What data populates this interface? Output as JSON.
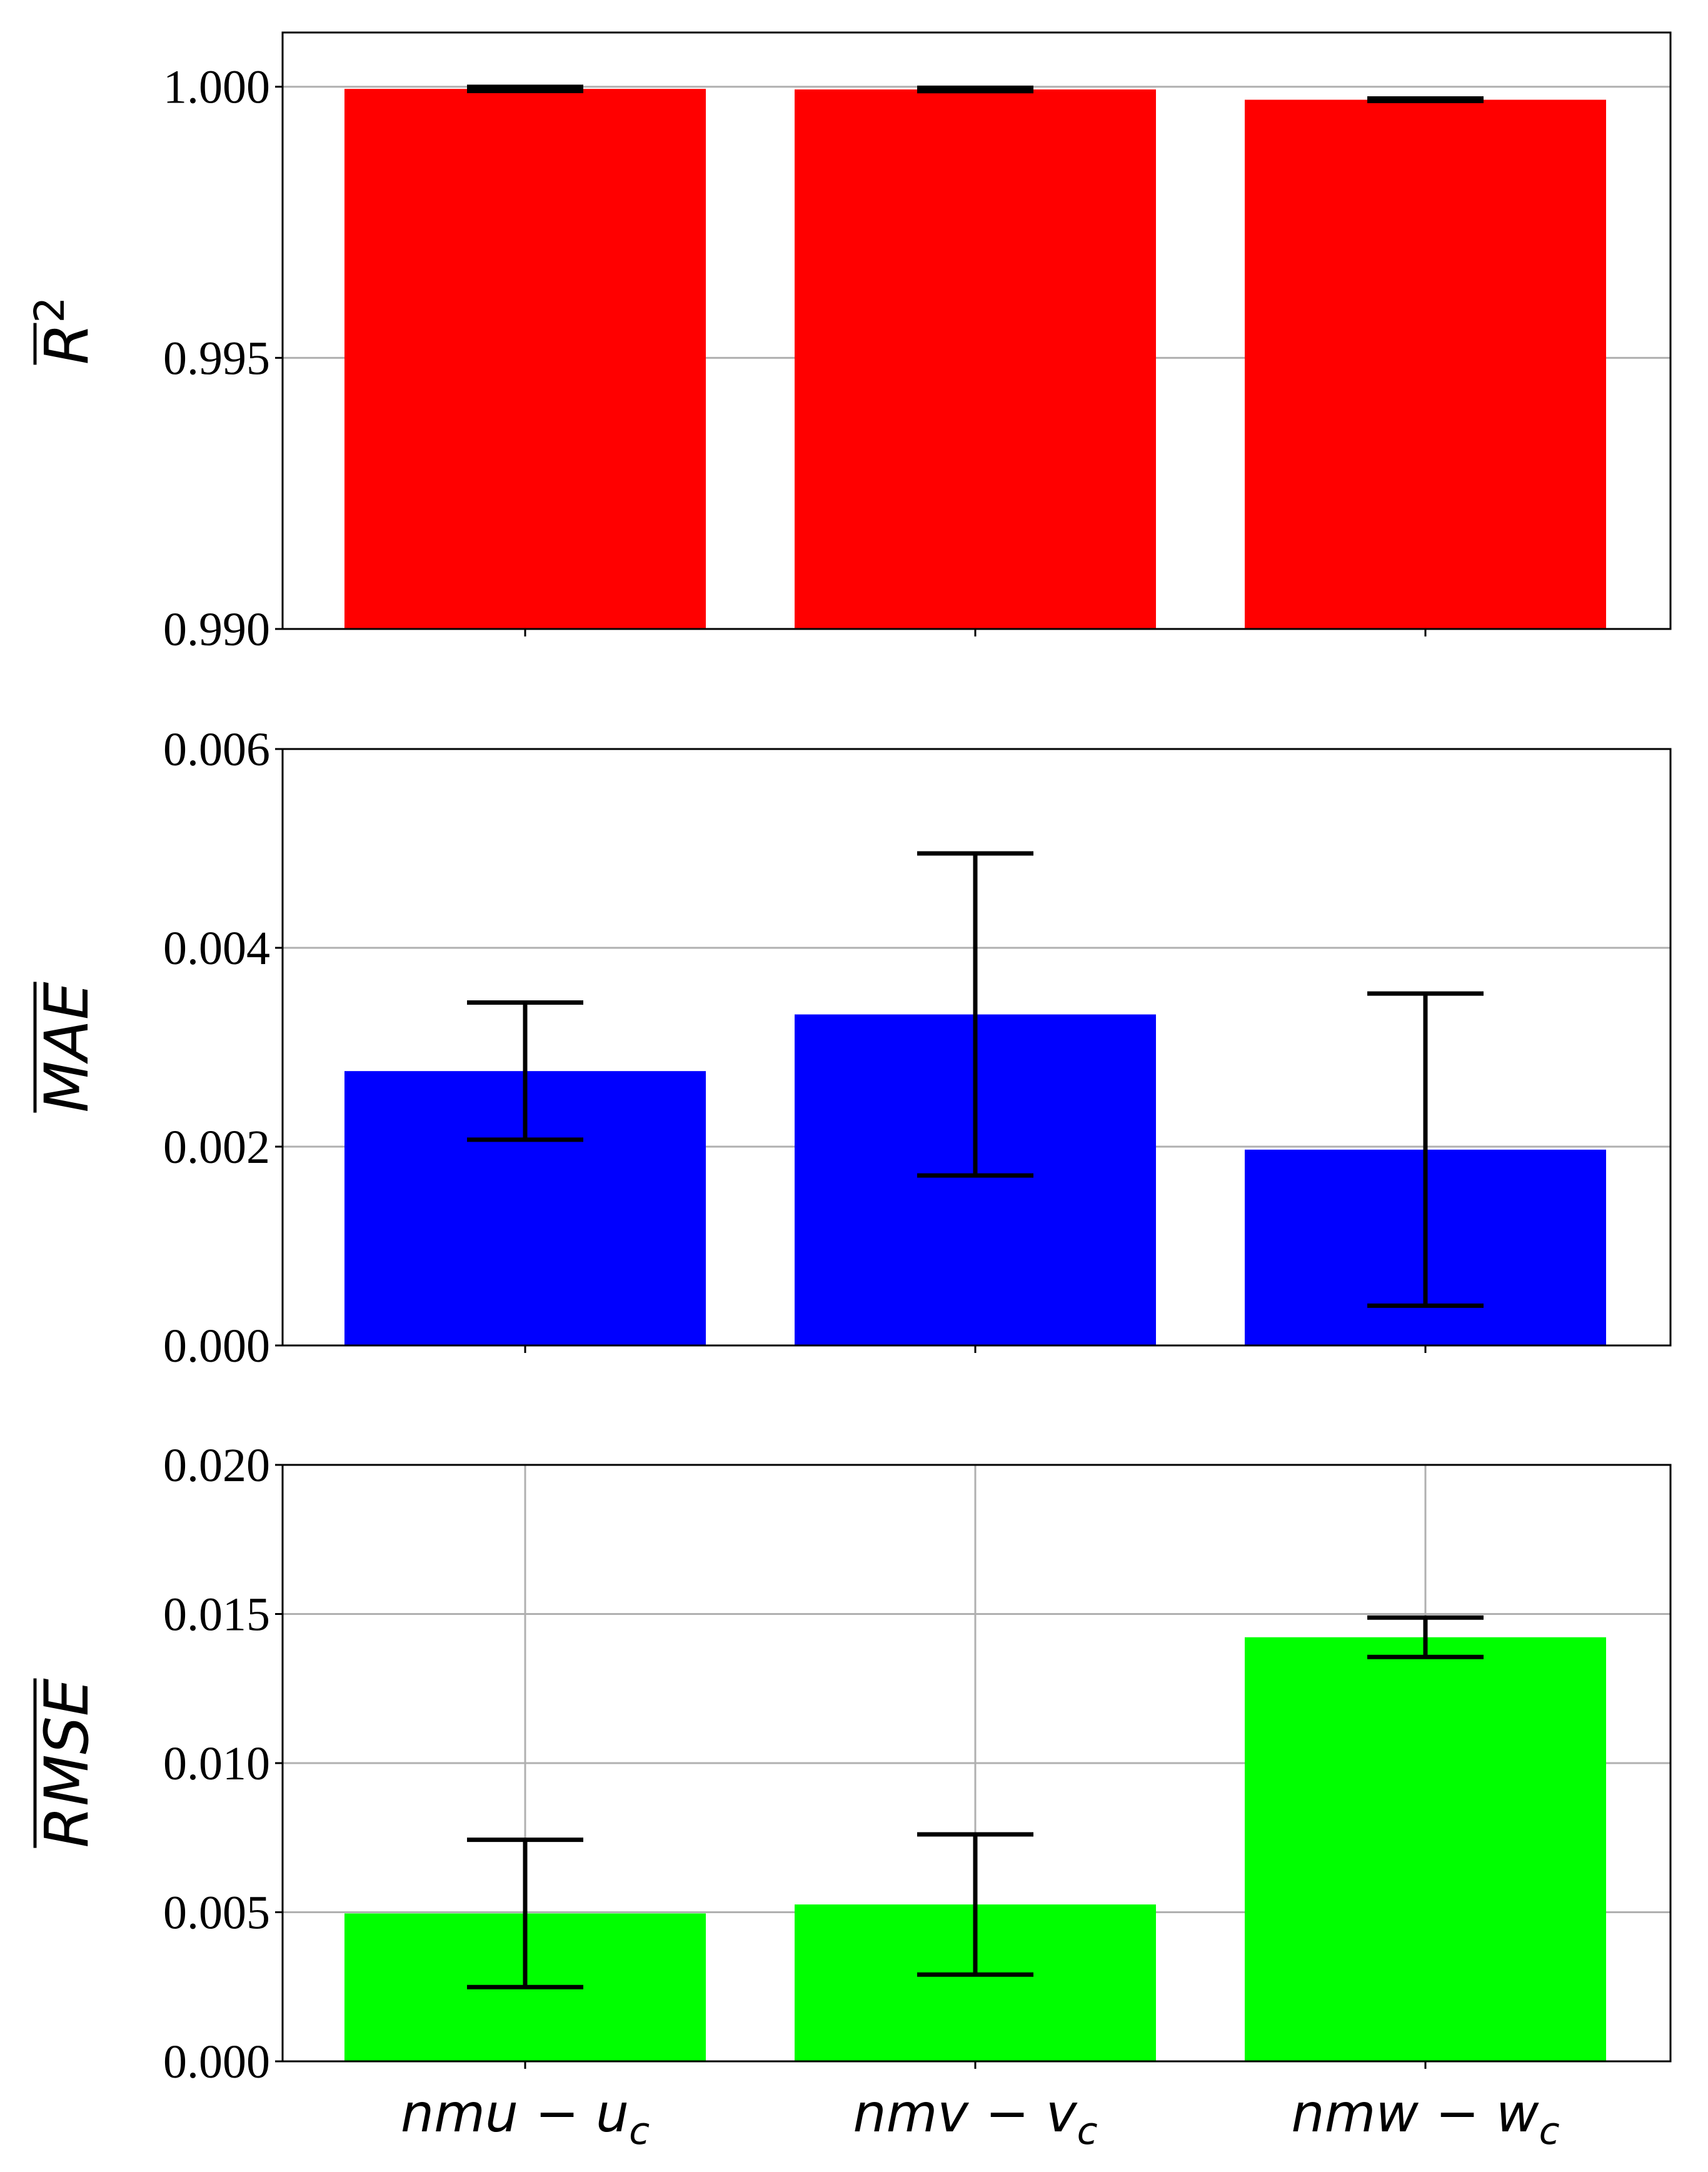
{
  "chart_data": [
    {
      "type": "bar",
      "name": "r2",
      "categories": [
        "nmu − u",
        "nmv − v",
        "nmw − w"
      ],
      "category_subscripts": [
        "c",
        "c",
        "c"
      ],
      "values": [
        0.99996,
        0.99995,
        0.99976
      ],
      "errors": [
        3.88e-05,
        3.16e-05,
        2.32e-05
      ],
      "ylabel": "R",
      "ylabel_superscript": "2",
      "ylabel_overline": true,
      "ylim": [
        0.99,
        1.001
      ],
      "yticks": [
        0.99,
        0.995,
        1.0
      ],
      "ytick_labels": [
        "0.990",
        "0.995",
        "1.000"
      ],
      "grid": "y",
      "color": "#ff0000"
    },
    {
      "type": "bar",
      "name": "mae",
      "categories": [
        "nmu − u",
        "nmv − v",
        "nmw − w"
      ],
      "category_subscripts": [
        "c",
        "c",
        "c"
      ],
      "values": [
        0.00276,
        0.00333,
        0.00197
      ],
      "errors": [
        0.00069,
        0.00162,
        0.00157
      ],
      "ylabel": "MAE",
      "ylabel_overline": true,
      "ylim": [
        0,
        0.006
      ],
      "yticks": [
        0.0,
        0.002,
        0.004,
        0.006
      ],
      "ytick_labels": [
        "0.000",
        "0.002",
        "0.004",
        "0.006"
      ],
      "grid": "y",
      "color": "#0000ff"
    },
    {
      "type": "bar",
      "name": "rmse",
      "categories": [
        "nmu − u",
        "nmv − v",
        "nmw − w"
      ],
      "category_subscripts": [
        "c",
        "c",
        "c"
      ],
      "values": [
        0.00496,
        0.00526,
        0.01422
      ],
      "errors": [
        0.00247,
        0.00235,
        0.00066
      ],
      "ylabel": "RMSE",
      "ylabel_overline": true,
      "ylim": [
        0,
        0.02
      ],
      "yticks": [
        0.0,
        0.005,
        0.01,
        0.015,
        0.02
      ],
      "ytick_labels": [
        "0.000",
        "0.005",
        "0.010",
        "0.015",
        "0.020"
      ],
      "grid": "both",
      "color": "#00ff00",
      "show_xticklabels": true
    }
  ]
}
